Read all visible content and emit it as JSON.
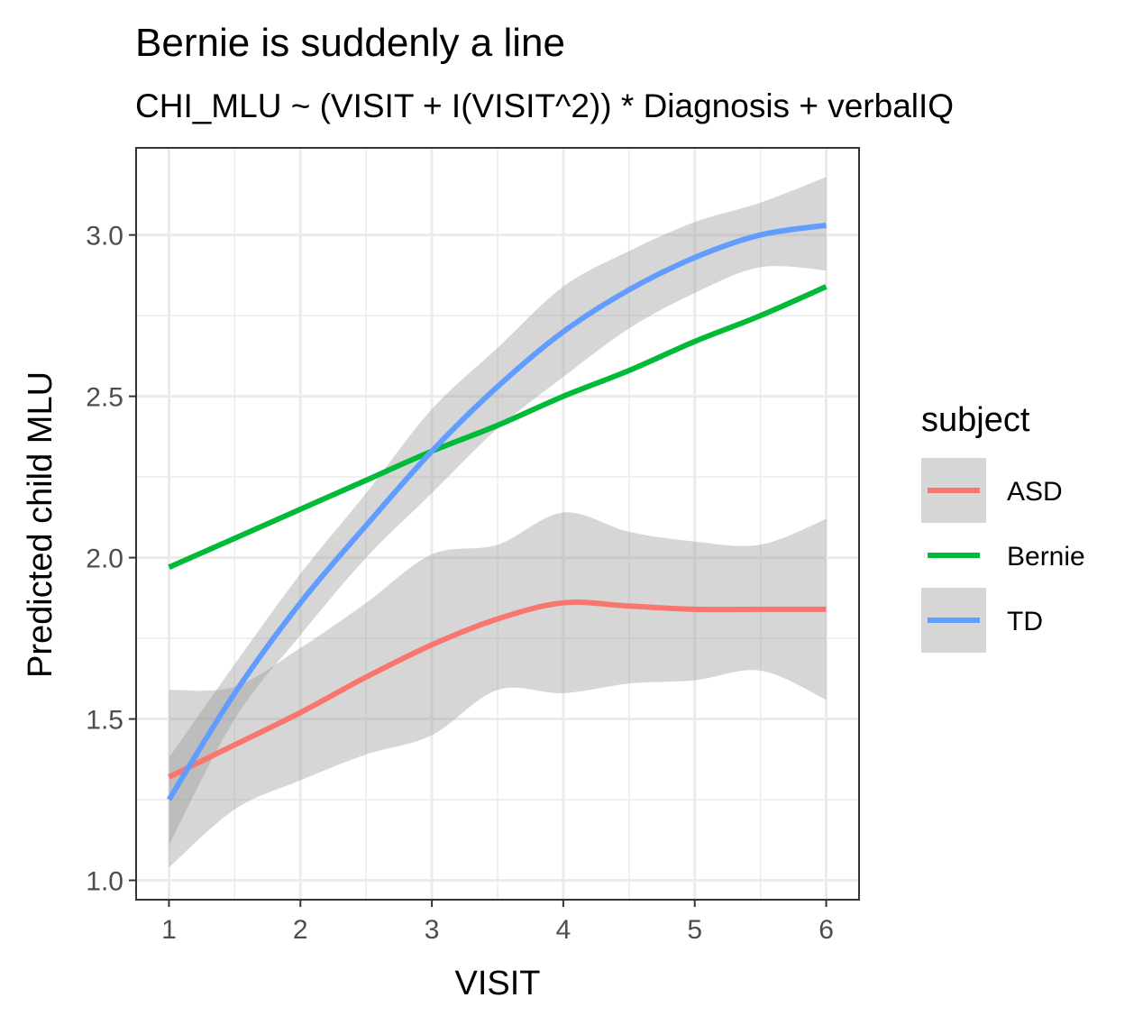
{
  "chart_data": {
    "type": "line",
    "title": "Bernie is suddenly a line",
    "subtitle": "CHI_MLU ~ (VISIT + I(VISIT^2)) * Diagnosis + verbalIQ",
    "xlabel": "VISIT",
    "ylabel": "Predicted child MLU",
    "xlim": [
      0.75,
      6.25
    ],
    "ylim": [
      0.94,
      3.27
    ],
    "x_ticks": [
      1,
      2,
      3,
      4,
      5,
      6
    ],
    "x_tick_labels": [
      "1",
      "2",
      "3",
      "4",
      "5",
      "6"
    ],
    "y_ticks": [
      1.0,
      1.5,
      2.0,
      2.5,
      3.0
    ],
    "y_tick_labels": [
      "1.0",
      "1.5",
      "2.0",
      "2.5",
      "3.0"
    ],
    "grid": true,
    "legend": {
      "title": "subject",
      "position": "right"
    },
    "x": [
      1,
      1.5,
      2,
      2.5,
      3,
      3.5,
      4,
      4.5,
      5,
      5.5,
      6
    ],
    "series": [
      {
        "name": "ASD",
        "color": "#F8766D",
        "values": [
          1.32,
          1.42,
          1.52,
          1.63,
          1.73,
          1.81,
          1.86,
          1.85,
          1.84,
          1.84,
          1.84
        ],
        "ribbon_low": [
          1.04,
          1.22,
          1.31,
          1.39,
          1.45,
          1.59,
          1.58,
          1.61,
          1.62,
          1.65,
          1.56
        ],
        "ribbon_high": [
          1.59,
          1.6,
          1.72,
          1.86,
          2.01,
          2.04,
          2.14,
          2.08,
          2.05,
          2.04,
          2.12
        ]
      },
      {
        "name": "Bernie",
        "color": "#00BA38",
        "values": [
          1.97,
          2.06,
          2.15,
          2.24,
          2.33,
          2.41,
          2.5,
          2.58,
          2.67,
          2.75,
          2.84
        ],
        "ribbon_low": null,
        "ribbon_high": null
      },
      {
        "name": "TD",
        "color": "#619CFF",
        "values": [
          1.25,
          1.58,
          1.86,
          2.1,
          2.33,
          2.53,
          2.7,
          2.83,
          2.93,
          3.0,
          3.03
        ],
        "ribbon_low": [
          1.11,
          1.5,
          1.76,
          2.0,
          2.2,
          2.4,
          2.56,
          2.71,
          2.82,
          2.9,
          2.89
        ],
        "ribbon_high": [
          1.38,
          1.67,
          1.95,
          2.2,
          2.46,
          2.65,
          2.84,
          2.95,
          3.04,
          3.1,
          3.18
        ]
      }
    ]
  }
}
